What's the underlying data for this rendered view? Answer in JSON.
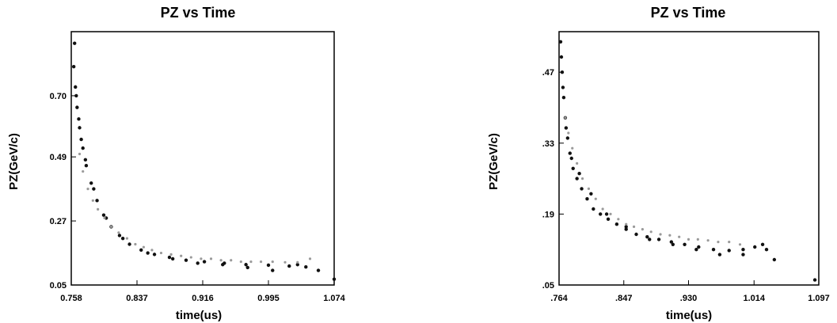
{
  "chart_data": [
    {
      "type": "scatter",
      "title": "PZ vs Time",
      "xlabel": "time(us)",
      "ylabel": "PZ(GeV/c)",
      "xlim": [
        0.758,
        1.074
      ],
      "ylim": [
        0.05,
        0.92
      ],
      "x_ticks": [
        "0.758",
        "0.837",
        "0.916",
        "0.995",
        "1.074"
      ],
      "y_ticks": [
        "0.05",
        "0.27",
        "0.49",
        "0.70"
      ],
      "x_tick_values": [
        0.758,
        0.837,
        0.916,
        0.995,
        1.074
      ],
      "y_tick_values": [
        0.05,
        0.27,
        0.49,
        0.7
      ],
      "grid": false,
      "series": [
        {
          "color": "#111111",
          "x": [
            0.761,
            0.763,
            0.765,
            0.768,
            0.772,
            0.776,
            0.782,
            0.789,
            0.797,
            0.806,
            0.816,
            0.828,
            0.842,
            0.858,
            0.876,
            0.896,
            0.918,
            0.942,
            0.968,
            0.995,
            1.02,
            1.04,
            1.055,
            1.074,
            0.762,
            0.764,
            0.767,
            0.77,
            0.775,
            0.785,
            0.8,
            0.82,
            0.85,
            0.88,
            0.91,
            0.94,
            0.97,
            1.0,
            1.03
          ],
          "y": [
            0.8,
            0.73,
            0.66,
            0.59,
            0.52,
            0.46,
            0.4,
            0.34,
            0.29,
            0.25,
            0.22,
            0.19,
            0.17,
            0.155,
            0.145,
            0.135,
            0.13,
            0.125,
            0.12,
            0.118,
            0.115,
            0.112,
            0.1,
            0.07,
            0.88,
            0.7,
            0.62,
            0.55,
            0.48,
            0.38,
            0.28,
            0.21,
            0.16,
            0.14,
            0.125,
            0.12,
            0.11,
            0.1,
            0.12
          ]
        },
        {
          "color": "#9a9a9a",
          "x": [
            0.768,
            0.772,
            0.778,
            0.784,
            0.79,
            0.798,
            0.806,
            0.815,
            0.825,
            0.835,
            0.845,
            0.855,
            0.866,
            0.878,
            0.89,
            0.902,
            0.914,
            0.926,
            0.938,
            0.95,
            0.962,
            0.974,
            0.986,
            1.0,
            1.015,
            1.03,
            1.045
          ],
          "y": [
            0.5,
            0.44,
            0.38,
            0.34,
            0.31,
            0.28,
            0.25,
            0.23,
            0.21,
            0.19,
            0.18,
            0.17,
            0.16,
            0.155,
            0.15,
            0.145,
            0.14,
            0.14,
            0.135,
            0.135,
            0.13,
            0.13,
            0.13,
            0.13,
            0.128,
            0.128,
            0.14
          ]
        }
      ]
    },
    {
      "type": "scatter",
      "title": "PZ vs Time",
      "xlabel": "time(us)",
      "ylabel": "PZ(GeV/c)",
      "xlim": [
        0.764,
        1.097
      ],
      "ylim": [
        0.05,
        0.55
      ],
      "x_ticks": [
        ".764",
        ".847",
        ".930",
        "1.014",
        "1.097"
      ],
      "y_ticks": [
        ".05",
        ".19",
        ".33",
        ".47"
      ],
      "x_tick_values": [
        0.764,
        0.847,
        0.93,
        1.014,
        1.097
      ],
      "y_tick_values": [
        0.05,
        0.19,
        0.33,
        0.47
      ],
      "grid": false,
      "series": [
        {
          "color": "#111111",
          "x": [
            0.766,
            0.768,
            0.77,
            0.772,
            0.775,
            0.778,
            0.782,
            0.787,
            0.793,
            0.8,
            0.808,
            0.817,
            0.827,
            0.838,
            0.85,
            0.863,
            0.877,
            0.892,
            0.908,
            0.925,
            0.943,
            0.962,
            0.982,
            1.0,
            1.015,
            1.03,
            1.04,
            1.092,
            0.767,
            0.769,
            0.773,
            0.78,
            0.79,
            0.805,
            0.825,
            0.85,
            0.88,
            0.91,
            0.94,
            0.97,
            1.0,
            1.025
          ],
          "y": [
            0.53,
            0.47,
            0.42,
            0.38,
            0.34,
            0.31,
            0.28,
            0.26,
            0.24,
            0.22,
            0.2,
            0.19,
            0.18,
            0.17,
            0.16,
            0.15,
            0.145,
            0.14,
            0.135,
            0.13,
            0.125,
            0.12,
            0.118,
            0.12,
            0.125,
            0.12,
            0.1,
            0.06,
            0.5,
            0.44,
            0.36,
            0.3,
            0.27,
            0.23,
            0.19,
            0.165,
            0.14,
            0.13,
            0.12,
            0.11,
            0.11,
            0.13
          ]
        },
        {
          "color": "#9a9a9a",
          "x": [
            0.772,
            0.776,
            0.781,
            0.787,
            0.794,
            0.802,
            0.811,
            0.82,
            0.83,
            0.84,
            0.85,
            0.86,
            0.871,
            0.882,
            0.894,
            0.906,
            0.918,
            0.93,
            0.942,
            0.955,
            0.968,
            0.982,
            0.996
          ],
          "y": [
            0.38,
            0.35,
            0.32,
            0.29,
            0.26,
            0.24,
            0.22,
            0.2,
            0.19,
            0.18,
            0.17,
            0.165,
            0.16,
            0.155,
            0.15,
            0.148,
            0.145,
            0.14,
            0.14,
            0.138,
            0.135,
            0.135,
            0.13
          ]
        }
      ]
    }
  ]
}
